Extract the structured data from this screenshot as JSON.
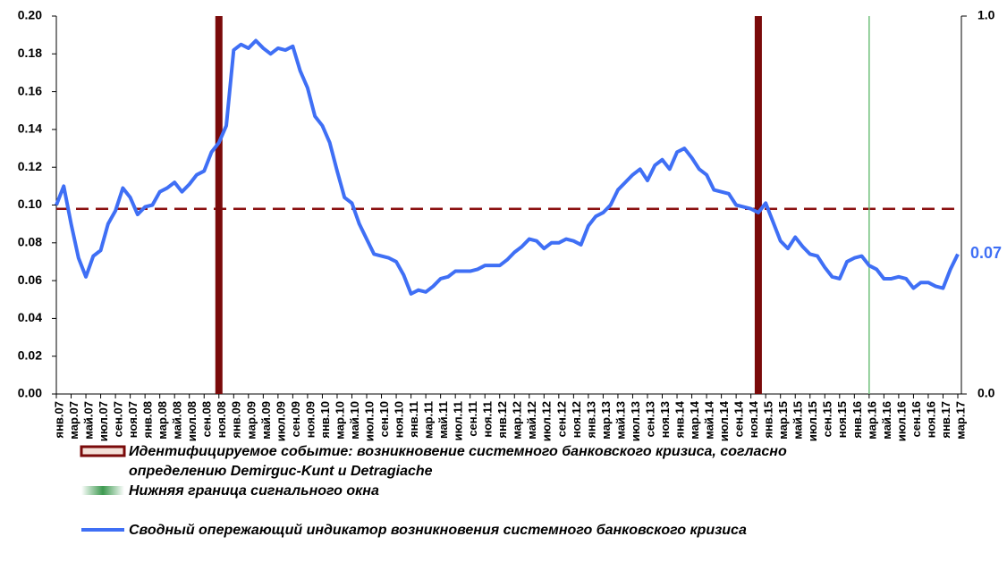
{
  "chart_data": {
    "type": "line",
    "categories": [
      "янв.07",
      null,
      "мар.07",
      null,
      "май.07",
      null,
      "июл.07",
      null,
      "сен.07",
      null,
      "ноя.07",
      null,
      "янв.08",
      null,
      "мар.08",
      null,
      "май.08",
      null,
      "июл.08",
      null,
      "сен.08",
      null,
      "ноя.08",
      null,
      "янв.09",
      null,
      "мар.09",
      null,
      "май.09",
      null,
      "июл.09",
      null,
      "сен.09",
      null,
      "ноя.09",
      null,
      "янв.10",
      null,
      "мар.10",
      null,
      "май.10",
      null,
      "июл.10",
      null,
      "сен.10",
      null,
      "ноя.10",
      null,
      "янв.11",
      null,
      "мар.11",
      null,
      "май.11",
      null,
      "июл.11",
      null,
      "сен.11",
      null,
      "ноя.11",
      null,
      "янв.12",
      null,
      "мар.12",
      null,
      "май.12",
      null,
      "июл.12",
      null,
      "сен.12",
      null,
      "ноя.12",
      null,
      "янв.13",
      null,
      "мар.13",
      null,
      "май.13",
      null,
      "июл.13",
      null,
      "сен.13",
      null,
      "ноя.13",
      null,
      "янв.14",
      null,
      "мар.14",
      null,
      "май.14",
      null,
      "июл.14",
      null,
      "сен.14",
      null,
      "ноя.14",
      null,
      "янв.15",
      null,
      "мар.15",
      null,
      "май.15",
      null,
      "июл.15",
      null,
      "сен.15",
      null,
      "ноя.15",
      null,
      "янв.16",
      null,
      "мар.16",
      null,
      "май.16",
      null,
      "июл.16",
      null,
      "сен.16",
      null,
      "ноя.16",
      null,
      "янв.17",
      null,
      "мар.17"
    ],
    "series": [
      {
        "name": "Сводный опережающий индикатор возникновения системного банковского кризиса",
        "color": "#3f6ff5",
        "values": [
          0.1,
          0.11,
          0.09,
          0.072,
          0.062,
          0.073,
          0.076,
          0.09,
          0.097,
          0.109,
          0.104,
          0.095,
          0.099,
          0.1,
          0.107,
          0.109,
          0.112,
          0.107,
          0.111,
          0.116,
          0.118,
          0.128,
          0.133,
          0.142,
          0.182,
          0.185,
          0.183,
          0.187,
          0.183,
          0.18,
          0.183,
          0.182,
          0.184,
          0.171,
          0.162,
          0.147,
          0.142,
          0.133,
          0.118,
          0.104,
          0.101,
          0.09,
          0.082,
          0.074,
          0.073,
          0.072,
          0.07,
          0.063,
          0.053,
          0.055,
          0.054,
          0.057,
          0.061,
          0.062,
          0.065,
          0.065,
          0.065,
          0.066,
          0.068,
          0.068,
          0.068,
          0.071,
          0.075,
          0.078,
          0.082,
          0.081,
          0.077,
          0.08,
          0.08,
          0.082,
          0.081,
          0.079,
          0.089,
          0.094,
          0.096,
          0.1,
          0.108,
          0.112,
          0.116,
          0.119,
          0.113,
          0.121,
          0.124,
          0.119,
          0.128,
          0.13,
          0.125,
          0.119,
          0.116,
          0.108,
          0.107,
          0.106,
          0.1,
          0.099,
          0.098,
          0.096,
          0.101,
          0.091,
          0.081,
          0.077,
          0.083,
          0.078,
          0.074,
          0.073,
          0.067,
          0.062,
          0.061,
          0.07,
          0.072,
          0.073,
          0.068,
          0.066,
          0.061,
          0.061,
          0.062,
          0.061,
          0.056,
          0.059,
          0.059,
          0.057,
          0.056,
          0.066,
          0.074
        ]
      }
    ],
    "end_label": "0.07",
    "threshold": {
      "value": 0.098,
      "color": "#8b1010"
    },
    "events": {
      "label": [
        "Идентифицируемое событие: возникновение системного банковского кризиса, согласно",
        "определению Demirguc-Kunt и Detragiache"
      ],
      "color": "#7a0a0a",
      "x": [
        22,
        95
      ]
    },
    "signal_window": {
      "label": "Нижняя граница сигнального окна",
      "color": "#6fbf7a",
      "x": [
        110
      ]
    },
    "ylim": [
      0,
      0.2
    ],
    "yticks": [
      {
        "value": 0,
        "label": "0.00"
      },
      {
        "value": 0.02,
        "label": "0.02"
      },
      {
        "value": 0.04,
        "label": "0.04"
      },
      {
        "value": 0.06,
        "label": "0.06"
      },
      {
        "value": 0.08,
        "label": "0.08"
      },
      {
        "value": 0.1,
        "label": "0.10"
      },
      {
        "value": 0.12,
        "label": "0.12"
      },
      {
        "value": 0.14,
        "label": "0.14"
      },
      {
        "value": 0.16,
        "label": "0.16"
      },
      {
        "value": 0.18,
        "label": "0.18"
      },
      {
        "value": 0.2,
        "label": "0.20"
      }
    ],
    "y2lim": [
      0,
      1
    ],
    "y2ticks": [
      {
        "value": 0,
        "label": "0.0"
      },
      {
        "value": 1,
        "label": "1.0"
      }
    ]
  }
}
